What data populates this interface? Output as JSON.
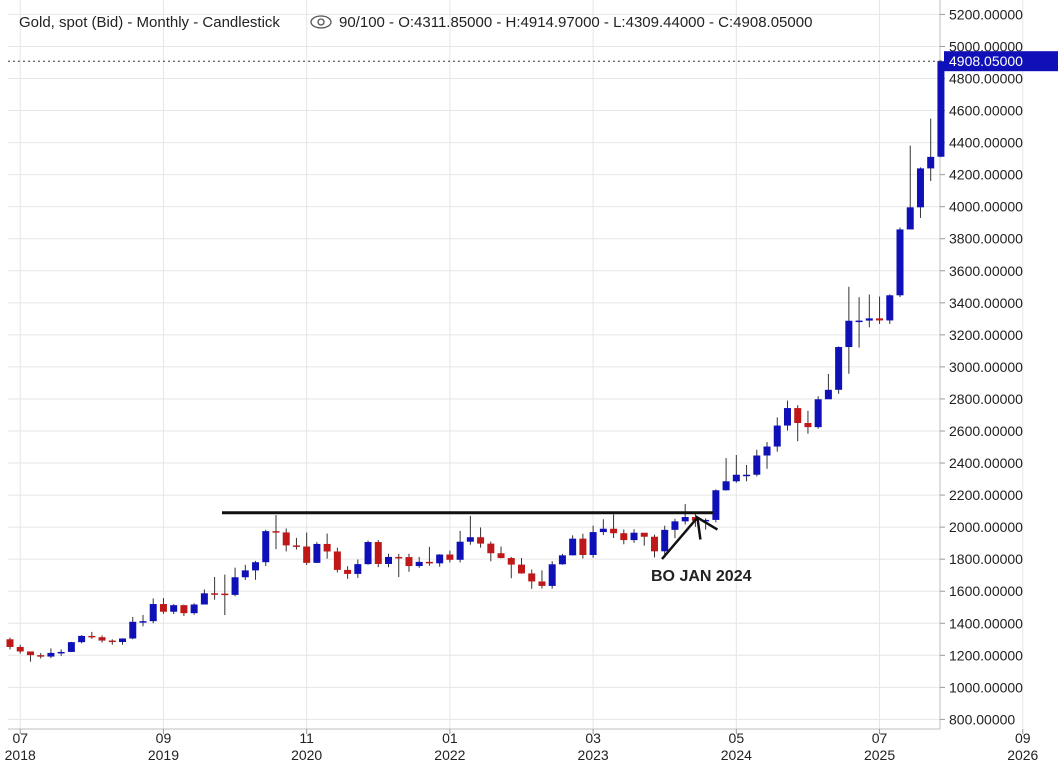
{
  "header": {
    "instrument": "Gold, spot (Bid) - Monthly - Candlestick",
    "ohlc": "90/100 - O:4311.85000 - H:4914.97000 - L:4309.44000 - C:4908.05000"
  },
  "colors": {
    "up": "#1010b8",
    "down": "#c01818",
    "price_tag": "#1010b8",
    "grid": "#e6e6e6",
    "resistance_line": "#111111"
  },
  "icons": [
    "eye-icon"
  ],
  "price_tag": "4908.05000",
  "annotation": "BO JAN 2024",
  "chart_data": {
    "type": "candlestick",
    "title": "Gold, spot (Bid) - Monthly - Candlestick",
    "y_ticks": [
      "800.00000",
      "1000.00000",
      "1200.00000",
      "1400.00000",
      "1600.00000",
      "1800.00000",
      "2000.00000",
      "2200.00000",
      "2400.00000",
      "2600.00000",
      "2800.00000",
      "3000.00000",
      "3200.00000",
      "3400.00000",
      "3600.00000",
      "3800.00000",
      "4000.00000",
      "4200.00000",
      "4400.00000",
      "4600.00000",
      "4800.00000",
      "5000.00000",
      "5200.00000"
    ],
    "x_ticks": [
      {
        "month": "07",
        "year": "2018",
        "date": "2018-07"
      },
      {
        "month": "09",
        "year": "2019",
        "date": "2019-09"
      },
      {
        "month": "11",
        "year": "2020",
        "date": "2020-11"
      },
      {
        "month": "01",
        "year": "2022",
        "date": "2022-01"
      },
      {
        "month": "03",
        "year": "2023",
        "date": "2023-03"
      },
      {
        "month": "05",
        "year": "2024",
        "date": "2024-05"
      },
      {
        "month": "07",
        "year": "2025",
        "date": "2025-07"
      },
      {
        "month": "09",
        "year": "2026",
        "date": "2026-09"
      }
    ],
    "ylim": [
      740,
      5290
    ],
    "last_close": 4908.05,
    "resistance_level": 2090,
    "annotation_point": {
      "date": "2024-01",
      "price": 2060
    },
    "candles": [
      {
        "date": "2018-06",
        "o": 1300,
        "h": 1310,
        "l": 1237,
        "c": 1252
      },
      {
        "date": "2018-07",
        "o": 1252,
        "h": 1266,
        "l": 1211,
        "c": 1224
      },
      {
        "date": "2018-08",
        "o": 1224,
        "h": 1214,
        "l": 1160,
        "c": 1201
      },
      {
        "date": "2018-09",
        "o": 1201,
        "h": 1214,
        "l": 1180,
        "c": 1192
      },
      {
        "date": "2018-10",
        "o": 1192,
        "h": 1243,
        "l": 1182,
        "c": 1215
      },
      {
        "date": "2018-11",
        "o": 1215,
        "h": 1237,
        "l": 1196,
        "c": 1221
      },
      {
        "date": "2018-12",
        "o": 1221,
        "h": 1284,
        "l": 1221,
        "c": 1282
      },
      {
        "date": "2019-01",
        "o": 1282,
        "h": 1326,
        "l": 1275,
        "c": 1321
      },
      {
        "date": "2019-02",
        "o": 1321,
        "h": 1346,
        "l": 1303,
        "c": 1313
      },
      {
        "date": "2019-03",
        "o": 1313,
        "h": 1324,
        "l": 1280,
        "c": 1292
      },
      {
        "date": "2019-04",
        "o": 1292,
        "h": 1300,
        "l": 1266,
        "c": 1283
      },
      {
        "date": "2019-05",
        "o": 1283,
        "h": 1306,
        "l": 1266,
        "c": 1305
      },
      {
        "date": "2019-06",
        "o": 1305,
        "h": 1439,
        "l": 1300,
        "c": 1409
      },
      {
        "date": "2019-07",
        "o": 1409,
        "h": 1452,
        "l": 1381,
        "c": 1413
      },
      {
        "date": "2019-08",
        "o": 1413,
        "h": 1555,
        "l": 1400,
        "c": 1520
      },
      {
        "date": "2019-09",
        "o": 1520,
        "h": 1557,
        "l": 1459,
        "c": 1472
      },
      {
        "date": "2019-10",
        "o": 1472,
        "h": 1519,
        "l": 1458,
        "c": 1513
      },
      {
        "date": "2019-11",
        "o": 1513,
        "h": 1516,
        "l": 1445,
        "c": 1463
      },
      {
        "date": "2019-12",
        "o": 1463,
        "h": 1525,
        "l": 1454,
        "c": 1517
      },
      {
        "date": "2020-01",
        "o": 1517,
        "h": 1611,
        "l": 1517,
        "c": 1587
      },
      {
        "date": "2020-02",
        "o": 1587,
        "h": 1689,
        "l": 1547,
        "c": 1585
      },
      {
        "date": "2020-03",
        "o": 1585,
        "h": 1704,
        "l": 1451,
        "c": 1577
      },
      {
        "date": "2020-04",
        "o": 1577,
        "h": 1747,
        "l": 1568,
        "c": 1687
      },
      {
        "date": "2020-05",
        "o": 1687,
        "h": 1765,
        "l": 1670,
        "c": 1730
      },
      {
        "date": "2020-06",
        "o": 1730,
        "h": 1789,
        "l": 1671,
        "c": 1781
      },
      {
        "date": "2020-07",
        "o": 1781,
        "h": 1984,
        "l": 1757,
        "c": 1975
      },
      {
        "date": "2020-08",
        "o": 1975,
        "h": 2075,
        "l": 1863,
        "c": 1967
      },
      {
        "date": "2020-09",
        "o": 1967,
        "h": 1992,
        "l": 1848,
        "c": 1886
      },
      {
        "date": "2020-10",
        "o": 1886,
        "h": 1933,
        "l": 1860,
        "c": 1879
      },
      {
        "date": "2020-11",
        "o": 1879,
        "h": 1966,
        "l": 1764,
        "c": 1777
      },
      {
        "date": "2020-12",
        "o": 1777,
        "h": 1906,
        "l": 1776,
        "c": 1895
      },
      {
        "date": "2021-01",
        "o": 1895,
        "h": 1960,
        "l": 1803,
        "c": 1848
      },
      {
        "date": "2021-02",
        "o": 1848,
        "h": 1872,
        "l": 1717,
        "c": 1733
      },
      {
        "date": "2021-03",
        "o": 1733,
        "h": 1756,
        "l": 1677,
        "c": 1708
      },
      {
        "date": "2021-04",
        "o": 1708,
        "h": 1798,
        "l": 1683,
        "c": 1769
      },
      {
        "date": "2021-05",
        "o": 1769,
        "h": 1916,
        "l": 1765,
        "c": 1907
      },
      {
        "date": "2021-06",
        "o": 1907,
        "h": 1919,
        "l": 1750,
        "c": 1770
      },
      {
        "date": "2021-07",
        "o": 1770,
        "h": 1834,
        "l": 1750,
        "c": 1814
      },
      {
        "date": "2021-08",
        "o": 1814,
        "h": 1832,
        "l": 1688,
        "c": 1813
      },
      {
        "date": "2021-09",
        "o": 1813,
        "h": 1834,
        "l": 1721,
        "c": 1757
      },
      {
        "date": "2021-10",
        "o": 1757,
        "h": 1814,
        "l": 1746,
        "c": 1783
      },
      {
        "date": "2021-11",
        "o": 1783,
        "h": 1877,
        "l": 1759,
        "c": 1774
      },
      {
        "date": "2021-12",
        "o": 1774,
        "h": 1831,
        "l": 1753,
        "c": 1829
      },
      {
        "date": "2022-01",
        "o": 1829,
        "h": 1853,
        "l": 1780,
        "c": 1796
      },
      {
        "date": "2022-02",
        "o": 1796,
        "h": 1976,
        "l": 1780,
        "c": 1909
      },
      {
        "date": "2022-03",
        "o": 1909,
        "h": 2070,
        "l": 1890,
        "c": 1937
      },
      {
        "date": "2022-04",
        "o": 1937,
        "h": 1998,
        "l": 1872,
        "c": 1897
      },
      {
        "date": "2022-05",
        "o": 1897,
        "h": 1910,
        "l": 1787,
        "c": 1837
      },
      {
        "date": "2022-06",
        "o": 1837,
        "h": 1879,
        "l": 1805,
        "c": 1807
      },
      {
        "date": "2022-07",
        "o": 1807,
        "h": 1814,
        "l": 1681,
        "c": 1766
      },
      {
        "date": "2022-08",
        "o": 1766,
        "h": 1807,
        "l": 1709,
        "c": 1711
      },
      {
        "date": "2022-09",
        "o": 1711,
        "h": 1735,
        "l": 1615,
        "c": 1661
      },
      {
        "date": "2022-10",
        "o": 1661,
        "h": 1730,
        "l": 1617,
        "c": 1633
      },
      {
        "date": "2022-11",
        "o": 1633,
        "h": 1787,
        "l": 1616,
        "c": 1768
      },
      {
        "date": "2022-12",
        "o": 1768,
        "h": 1833,
        "l": 1765,
        "c": 1824
      },
      {
        "date": "2023-01",
        "o": 1824,
        "h": 1949,
        "l": 1823,
        "c": 1928
      },
      {
        "date": "2023-02",
        "o": 1928,
        "h": 1959,
        "l": 1804,
        "c": 1826
      },
      {
        "date": "2023-03",
        "o": 1826,
        "h": 2009,
        "l": 1809,
        "c": 1969
      },
      {
        "date": "2023-04",
        "o": 1969,
        "h": 2049,
        "l": 1950,
        "c": 1990
      },
      {
        "date": "2023-05",
        "o": 1990,
        "h": 2079,
        "l": 1932,
        "c": 1962
      },
      {
        "date": "2023-06",
        "o": 1962,
        "h": 1985,
        "l": 1893,
        "c": 1919
      },
      {
        "date": "2023-07",
        "o": 1919,
        "h": 1987,
        "l": 1902,
        "c": 1965
      },
      {
        "date": "2023-08",
        "o": 1965,
        "h": 1949,
        "l": 1884,
        "c": 1940
      },
      {
        "date": "2023-09",
        "o": 1940,
        "h": 1953,
        "l": 1811,
        "c": 1849
      },
      {
        "date": "2023-10",
        "o": 1849,
        "h": 2009,
        "l": 1810,
        "c": 1983
      },
      {
        "date": "2023-11",
        "o": 1983,
        "h": 2052,
        "l": 1931,
        "c": 2036
      },
      {
        "date": "2023-12",
        "o": 2036,
        "h": 2144,
        "l": 2017,
        "c": 2063
      },
      {
        "date": "2024-01",
        "o": 2063,
        "h": 2088,
        "l": 2002,
        "c": 2040
      },
      {
        "date": "2024-02",
        "o": 2040,
        "h": 2055,
        "l": 1984,
        "c": 2045
      },
      {
        "date": "2024-03",
        "o": 2045,
        "h": 2236,
        "l": 2030,
        "c": 2230
      },
      {
        "date": "2024-04",
        "o": 2230,
        "h": 2431,
        "l": 2228,
        "c": 2286
      },
      {
        "date": "2024-05",
        "o": 2286,
        "h": 2450,
        "l": 2277,
        "c": 2327
      },
      {
        "date": "2024-06",
        "o": 2327,
        "h": 2388,
        "l": 2286,
        "c": 2327
      },
      {
        "date": "2024-07",
        "o": 2327,
        "h": 2483,
        "l": 2317,
        "c": 2447
      },
      {
        "date": "2024-08",
        "o": 2447,
        "h": 2531,
        "l": 2364,
        "c": 2503
      },
      {
        "date": "2024-09",
        "o": 2503,
        "h": 2685,
        "l": 2471,
        "c": 2634
      },
      {
        "date": "2024-10",
        "o": 2634,
        "h": 2790,
        "l": 2603,
        "c": 2743
      },
      {
        "date": "2024-11",
        "o": 2743,
        "h": 2761,
        "l": 2536,
        "c": 2650
      },
      {
        "date": "2024-12",
        "o": 2650,
        "h": 2726,
        "l": 2583,
        "c": 2624
      },
      {
        "date": "2025-01",
        "o": 2624,
        "h": 2817,
        "l": 2614,
        "c": 2798
      },
      {
        "date": "2025-02",
        "o": 2798,
        "h": 2956,
        "l": 2833,
        "c": 2857
      },
      {
        "date": "2025-03",
        "o": 2857,
        "h": 3128,
        "l": 2832,
        "c": 3124
      },
      {
        "date": "2025-04",
        "o": 3124,
        "h": 3500,
        "l": 2957,
        "c": 3288
      },
      {
        "date": "2025-05",
        "o": 3288,
        "h": 3435,
        "l": 3121,
        "c": 3289
      },
      {
        "date": "2025-06",
        "o": 3289,
        "h": 3452,
        "l": 3247,
        "c": 3303
      },
      {
        "date": "2025-07",
        "o": 3303,
        "h": 3439,
        "l": 3268,
        "c": 3290
      },
      {
        "date": "2025-08",
        "o": 3290,
        "h": 3453,
        "l": 3268,
        "c": 3447
      },
      {
        "date": "2025-09",
        "o": 3447,
        "h": 3870,
        "l": 3436,
        "c": 3858
      },
      {
        "date": "2025-10",
        "o": 3858,
        "h": 4381,
        "l": 3885,
        "c": 3996
      },
      {
        "date": "2025-11",
        "o": 3996,
        "h": 4245,
        "l": 3930,
        "c": 4239
      },
      {
        "date": "2025-12",
        "o": 4239,
        "h": 4550,
        "l": 4160,
        "c": 4311
      },
      {
        "date": "2026-01",
        "o": 4311.85,
        "h": 4914.97,
        "l": 4309.44,
        "c": 4908.05
      }
    ]
  }
}
